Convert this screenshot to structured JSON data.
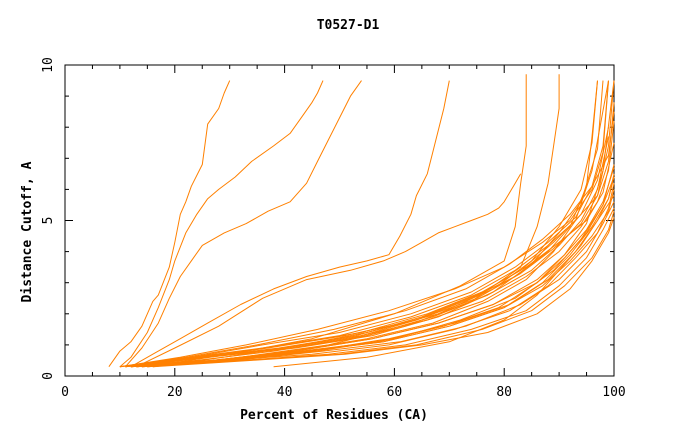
{
  "chart_data": {
    "type": "line",
    "title": "T0527-D1",
    "xlabel": "Percent of Residues (CA)",
    "ylabel": "Distance Cutoff, A",
    "xlim": [
      0,
      100
    ],
    "ylim": [
      0,
      10
    ],
    "x_ticks": [
      "0",
      "20",
      "40",
      "60",
      "80",
      "100"
    ],
    "y_ticks": [
      "0",
      "5",
      "10"
    ],
    "line_color": "#ff8000",
    "grid": false,
    "legend": "none",
    "series": [
      {
        "x": [
          8,
          10,
          12,
          14,
          16,
          17,
          19,
          20,
          21,
          22,
          23,
          25,
          26,
          28,
          29,
          30
        ],
        "y": [
          0.3,
          0.8,
          1.1,
          1.6,
          2.4,
          2.6,
          3.5,
          4.3,
          5.2,
          5.6,
          6.1,
          6.8,
          8.1,
          8.6,
          9.1,
          9.5
        ]
      },
      {
        "x": [
          10,
          12,
          15,
          17,
          19,
          20,
          22,
          24,
          26,
          28,
          31,
          34,
          38,
          41,
          43,
          45,
          46,
          47
        ],
        "y": [
          0.3,
          0.6,
          1.4,
          2.2,
          3.1,
          3.7,
          4.6,
          5.2,
          5.7,
          6.0,
          6.4,
          6.9,
          7.4,
          7.8,
          8.3,
          8.8,
          9.1,
          9.5
        ]
      },
      {
        "x": [
          11,
          14,
          17,
          19,
          21,
          23,
          25,
          29,
          33,
          37,
          41,
          44,
          46,
          48,
          50,
          52,
          54
        ],
        "y": [
          0.3,
          0.9,
          1.7,
          2.5,
          3.2,
          3.7,
          4.2,
          4.6,
          4.9,
          5.3,
          5.6,
          6.2,
          6.9,
          7.6,
          8.3,
          9.0,
          9.5
        ]
      },
      {
        "x": [
          12,
          16,
          21,
          26,
          32,
          38,
          44,
          50,
          55,
          59,
          61,
          63,
          64,
          66,
          67,
          69,
          70
        ],
        "y": [
          0.3,
          0.7,
          1.2,
          1.7,
          2.3,
          2.8,
          3.2,
          3.5,
          3.7,
          3.9,
          4.5,
          5.2,
          5.8,
          6.5,
          7.2,
          8.6,
          9.5
        ]
      },
      {
        "x": [
          13,
          20,
          28,
          36,
          44,
          52,
          58,
          62,
          65,
          68,
          71,
          74,
          77,
          79,
          80,
          81,
          82,
          83
        ],
        "y": [
          0.3,
          0.9,
          1.6,
          2.5,
          3.1,
          3.4,
          3.7,
          4.0,
          4.3,
          4.6,
          4.8,
          5.0,
          5.2,
          5.4,
          5.6,
          5.9,
          6.2,
          6.5
        ]
      },
      {
        "x": [
          15,
          30,
          45,
          60,
          72,
          80,
          82,
          83,
          84,
          84,
          84
        ],
        "y": [
          0.3,
          0.7,
          1.2,
          2.0,
          2.9,
          3.7,
          4.8,
          6.2,
          7.4,
          8.6,
          9.7
        ]
      },
      {
        "x": [
          16,
          32,
          48,
          62,
          74,
          83,
          86,
          88,
          89,
          90,
          90
        ],
        "y": [
          0.3,
          0.6,
          1.0,
          1.6,
          2.4,
          3.5,
          4.8,
          6.2,
          7.4,
          8.6,
          9.7
        ]
      },
      {
        "x": [
          12,
          25,
          40,
          55,
          68,
          78,
          85,
          90,
          94,
          96,
          97
        ],
        "y": [
          0.3,
          0.5,
          0.9,
          1.4,
          2.0,
          2.8,
          3.7,
          4.8,
          6.0,
          7.5,
          9.5
        ]
      },
      {
        "x": [
          11,
          24,
          38,
          52,
          64,
          74,
          82,
          88,
          92,
          95,
          96,
          97
        ],
        "y": [
          0.3,
          0.5,
          0.8,
          1.2,
          1.8,
          2.5,
          3.2,
          4.0,
          4.8,
          6.1,
          7.7,
          9.5
        ]
      },
      {
        "x": [
          10,
          26,
          42,
          56,
          68,
          78,
          85,
          90,
          94,
          97,
          98
        ],
        "y": [
          0.3,
          0.6,
          0.9,
          1.3,
          1.9,
          2.7,
          3.6,
          4.6,
          5.6,
          7.3,
          9.5
        ]
      },
      {
        "x": [
          12,
          27,
          41,
          55,
          67,
          77,
          84,
          89,
          93,
          96,
          99
        ],
        "y": [
          0.3,
          0.5,
          0.8,
          1.2,
          1.7,
          2.4,
          3.1,
          4.0,
          5.0,
          6.6,
          9.5
        ]
      },
      {
        "x": [
          13,
          28,
          43,
          57,
          69,
          79,
          86,
          91,
          95,
          98,
          100
        ],
        "y": [
          0.3,
          0.5,
          0.8,
          1.1,
          1.6,
          2.2,
          3.0,
          3.9,
          4.9,
          6.6,
          9.5
        ]
      },
      {
        "x": [
          11,
          23,
          36,
          50,
          63,
          74,
          82,
          88,
          93,
          97,
          99,
          100
        ],
        "y": [
          0.3,
          0.6,
          0.9,
          1.3,
          1.9,
          2.6,
          3.4,
          4.2,
          5.0,
          5.8,
          7.4,
          9.5
        ]
      },
      {
        "x": [
          14,
          30,
          46,
          60,
          72,
          82,
          89,
          94,
          98,
          100
        ],
        "y": [
          0.3,
          0.5,
          0.8,
          1.2,
          1.8,
          2.5,
          3.4,
          4.4,
          5.5,
          6.8
        ]
      },
      {
        "x": [
          12,
          26,
          40,
          54,
          66,
          76,
          84,
          90,
          95,
          98,
          100
        ],
        "y": [
          0.3,
          0.6,
          1.0,
          1.4,
          2.0,
          2.7,
          3.5,
          4.3,
          5.0,
          5.9,
          7.5
        ]
      },
      {
        "x": [
          13,
          29,
          45,
          59,
          71,
          81,
          88,
          93,
          97,
          99,
          100
        ],
        "y": [
          0.3,
          0.5,
          0.7,
          1.0,
          1.5,
          2.1,
          2.9,
          3.8,
          4.6,
          5.4,
          6.2
        ]
      },
      {
        "x": [
          10,
          22,
          35,
          49,
          62,
          73,
          81,
          87,
          92,
          96,
          99,
          100
        ],
        "y": [
          0.3,
          0.6,
          1.0,
          1.5,
          2.1,
          2.8,
          3.6,
          4.4,
          5.2,
          6.1,
          7.1,
          8.5
        ]
      },
      {
        "x": [
          14,
          31,
          47,
          61,
          73,
          83,
          90,
          95,
          98,
          100
        ],
        "y": [
          0.3,
          0.5,
          0.8,
          1.1,
          1.6,
          2.3,
          3.1,
          4.0,
          4.9,
          5.6
        ]
      },
      {
        "x": [
          11,
          25,
          39,
          53,
          65,
          75,
          83,
          89,
          94,
          97,
          99
        ],
        "y": [
          0.3,
          0.6,
          0.9,
          1.3,
          1.9,
          2.6,
          3.4,
          4.3,
          5.2,
          6.3,
          8.0
        ]
      },
      {
        "x": [
          15,
          33,
          50,
          64,
          76,
          85,
          91,
          96,
          99,
          100
        ],
        "y": [
          0.3,
          0.5,
          0.7,
          1.0,
          1.5,
          2.1,
          2.9,
          3.8,
          4.7,
          5.3
        ]
      },
      {
        "x": [
          12,
          27,
          42,
          56,
          68,
          78,
          86,
          91,
          95,
          98,
          100
        ],
        "y": [
          0.3,
          0.5,
          0.8,
          1.2,
          1.7,
          2.3,
          3.0,
          3.8,
          4.6,
          5.5,
          6.4
        ]
      },
      {
        "x": [
          10,
          21,
          33,
          46,
          59,
          71,
          80,
          87,
          92,
          96,
          98,
          99
        ],
        "y": [
          0.3,
          0.6,
          1.0,
          1.5,
          2.1,
          2.8,
          3.5,
          4.3,
          5.0,
          6.0,
          7.2,
          9.5
        ]
      },
      {
        "x": [
          13,
          28,
          44,
          58,
          70,
          80,
          87,
          92,
          96,
          99,
          100
        ],
        "y": [
          0.3,
          0.5,
          0.8,
          1.1,
          1.6,
          2.2,
          2.9,
          3.7,
          4.5,
          5.3,
          6.0
        ]
      },
      {
        "x": [
          11,
          24,
          37,
          51,
          64,
          75,
          83,
          89,
          94,
          97,
          99,
          100
        ],
        "y": [
          0.3,
          0.6,
          0.9,
          1.3,
          1.8,
          2.5,
          3.3,
          4.1,
          4.9,
          5.8,
          6.9,
          8.8
        ]
      },
      {
        "x": [
          16,
          34,
          51,
          65,
          77,
          86,
          92,
          96,
          99,
          100
        ],
        "y": [
          0.3,
          0.5,
          0.7,
          1.0,
          1.4,
          2.0,
          2.8,
          3.7,
          4.6,
          5.1
        ]
      },
      {
        "x": [
          12,
          26,
          41,
          55,
          67,
          77,
          85,
          90,
          94,
          97,
          99
        ],
        "y": [
          0.3,
          0.6,
          0.9,
          1.3,
          1.9,
          2.6,
          3.4,
          4.2,
          5.0,
          6.0,
          7.7
        ]
      },
      {
        "x": [
          14,
          30,
          45,
          59,
          71,
          81,
          88,
          93,
          97,
          100
        ],
        "y": [
          0.3,
          0.5,
          0.8,
          1.2,
          1.7,
          2.3,
          3.1,
          4.0,
          5.0,
          5.8
        ]
      },
      {
        "x": [
          10,
          23,
          36,
          50,
          63,
          74,
          82,
          88,
          93,
          96,
          98,
          99
        ],
        "y": [
          0.3,
          0.6,
          1.0,
          1.4,
          2.0,
          2.7,
          3.5,
          4.3,
          5.1,
          6.1,
          7.4,
          9.5
        ]
      },
      {
        "x": [
          13,
          29,
          44,
          58,
          70,
          80,
          87,
          92,
          96,
          99,
          100
        ],
        "y": [
          0.3,
          0.5,
          0.8,
          1.1,
          1.6,
          2.2,
          3.0,
          3.9,
          4.8,
          5.7,
          6.5
        ]
      },
      {
        "x": [
          11,
          25,
          40,
          54,
          66,
          76,
          84,
          90,
          94,
          97,
          99,
          100
        ],
        "y": [
          0.3,
          0.6,
          0.9,
          1.3,
          1.8,
          2.4,
          3.2,
          4.0,
          4.8,
          5.6,
          6.6,
          8.2
        ]
      },
      {
        "x": [
          15,
          32,
          48,
          62,
          74,
          84,
          90,
          95,
          98,
          100
        ],
        "y": [
          0.3,
          0.5,
          0.7,
          1.0,
          1.5,
          2.1,
          2.9,
          3.8,
          4.7,
          5.4
        ]
      },
      {
        "x": [
          12,
          27,
          42,
          56,
          68,
          78,
          86,
          91,
          95,
          98,
          100
        ],
        "y": [
          0.3,
          0.5,
          0.8,
          1.2,
          1.7,
          2.3,
          3.1,
          3.9,
          4.7,
          5.6,
          6.7
        ]
      },
      {
        "x": [
          38,
          55,
          70,
          80,
          86,
          90,
          94,
          97,
          99,
          100
        ],
        "y": [
          0.3,
          0.6,
          1.1,
          1.8,
          2.6,
          3.4,
          4.2,
          5.0,
          5.7,
          6.4
        ]
      }
    ]
  }
}
